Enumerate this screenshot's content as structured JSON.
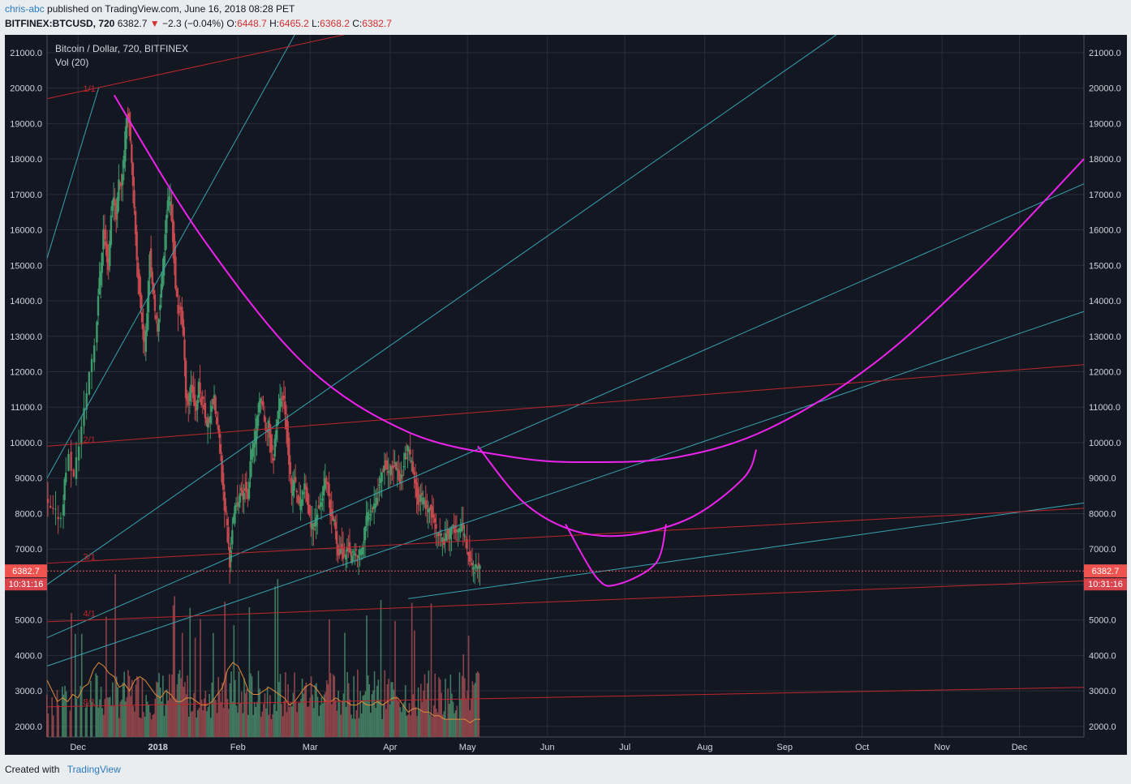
{
  "header": {
    "author": "chris-abc",
    "published": "published on TradingView.com, June 16, 2018 08:28 PET",
    "symbol": "BITFINEX:BTCUSD, 720",
    "last": "6382.7",
    "change_arrow": "▼",
    "change": "−2.3 (−0.04%)",
    "o_label": "O:",
    "o": "6448.7",
    "h_label": "H:",
    "h": "6465.2",
    "l_label": "L:",
    "l": "6368.2",
    "c_label": "C:",
    "c": "6382.7"
  },
  "footer": {
    "created_with": "Created with",
    "brand": "TradingView"
  },
  "colors": {
    "background": "#131722",
    "grid": "#2a2e39",
    "axis_text": "#d1d4dc",
    "frame_outer": "#eaedf0",
    "cyan": "#36a3b0",
    "red": "#c0262b",
    "magenta": "#ee22ee",
    "price_label": "#ef5350",
    "volume_ma": "#e08b3a",
    "vol_up": "#4a8a6a",
    "vol_down": "#a04b50"
  },
  "chart_data": {
    "type": "candlestick",
    "title": "Bitcoin / Dollar, 720, BITFINEX",
    "indicator": "Vol (20)",
    "y_ticks": [
      "21000.0",
      "20000.0",
      "19000.0",
      "18000.0",
      "17000.0",
      "16000.0",
      "15000.0",
      "14000.0",
      "13000.0",
      "12000.0",
      "11000.0",
      "10000.0",
      "9000.0",
      "8000.0",
      "7000.0",
      "6000.0",
      "5000.0",
      "4000.0",
      "3000.0",
      "2000.0"
    ],
    "y_range": [
      1700,
      21500
    ],
    "x_ticks": [
      "Dec",
      "2018",
      "Feb",
      "Mar",
      "Apr",
      "May",
      "Jun",
      "Jul",
      "Aug",
      "Sep",
      "Oct",
      "Nov",
      "Dec"
    ],
    "x_tick_days": [
      12,
      43,
      74,
      102,
      133,
      163,
      194,
      224,
      255,
      286,
      316,
      347,
      377
    ],
    "x_range": [
      0,
      402
    ],
    "last_price": "6382.7",
    "countdown": "10:31:16",
    "price_path": [
      [
        0,
        8300
      ],
      [
        2,
        8100
      ],
      [
        4,
        8000
      ],
      [
        6,
        7900
      ],
      [
        7,
        8900
      ],
      [
        9,
        9600
      ],
      [
        11,
        9000
      ],
      [
        13,
        10000
      ],
      [
        15,
        10900
      ],
      [
        17,
        12000
      ],
      [
        19,
        12800
      ],
      [
        20,
        14200
      ],
      [
        21,
        14900
      ],
      [
        22,
        16000
      ],
      [
        23,
        15500
      ],
      [
        24,
        14900
      ],
      [
        25,
        16500
      ],
      [
        26,
        17000
      ],
      [
        27,
        16400
      ],
      [
        28,
        17400
      ],
      [
        29,
        17300
      ],
      [
        30,
        18000
      ],
      [
        31,
        19300
      ],
      [
        32,
        19100
      ],
      [
        33,
        17800
      ],
      [
        34,
        16500
      ],
      [
        35,
        15200
      ],
      [
        36,
        14200
      ],
      [
        37,
        13400
      ],
      [
        38,
        12700
      ],
      [
        39,
        13800
      ],
      [
        40,
        15400
      ],
      [
        41,
        14500
      ],
      [
        42,
        13600
      ],
      [
        43,
        13200
      ],
      [
        44,
        14000
      ],
      [
        45,
        14800
      ],
      [
        46,
        16000
      ],
      [
        47,
        16900
      ],
      [
        48,
        16700
      ],
      [
        49,
        15800
      ],
      [
        50,
        14400
      ],
      [
        51,
        13600
      ],
      [
        52,
        13800
      ],
      [
        53,
        13000
      ],
      [
        54,
        11400
      ],
      [
        55,
        11100
      ],
      [
        56,
        11700
      ],
      [
        57,
        11300
      ],
      [
        58,
        10900
      ],
      [
        59,
        11600
      ],
      [
        60,
        11200
      ],
      [
        61,
        11100
      ],
      [
        62,
        10500
      ],
      [
        63,
        10600
      ],
      [
        64,
        11100
      ],
      [
        65,
        11200
      ],
      [
        66,
        10500
      ],
      [
        67,
        10100
      ],
      [
        68,
        9000
      ],
      [
        69,
        8200
      ],
      [
        70,
        7700
      ],
      [
        71,
        6500
      ],
      [
        72,
        7600
      ],
      [
        73,
        8100
      ],
      [
        74,
        8300
      ],
      [
        75,
        8600
      ],
      [
        76,
        8500
      ],
      [
        77,
        8800
      ],
      [
        78,
        8300
      ],
      [
        79,
        9500
      ],
      [
        80,
        9900
      ],
      [
        81,
        10200
      ],
      [
        82,
        10900
      ],
      [
        83,
        11300
      ],
      [
        84,
        10900
      ],
      [
        85,
        10200
      ],
      [
        86,
        10600
      ],
      [
        87,
        9800
      ],
      [
        88,
        9600
      ],
      [
        89,
        10500
      ],
      [
        90,
        11000
      ],
      [
        91,
        11300
      ],
      [
        92,
        11100
      ],
      [
        93,
        10500
      ],
      [
        94,
        9500
      ],
      [
        95,
        8500
      ],
      [
        96,
        9000
      ],
      [
        97,
        8600
      ],
      [
        98,
        8200
      ],
      [
        99,
        8500
      ],
      [
        100,
        8800
      ],
      [
        101,
        8400
      ],
      [
        102,
        7800
      ],
      [
        103,
        7600
      ],
      [
        104,
        7700
      ],
      [
        105,
        8100
      ],
      [
        106,
        8200
      ],
      [
        107,
        8500
      ],
      [
        108,
        8900
      ],
      [
        109,
        8700
      ],
      [
        110,
        8000
      ],
      [
        111,
        7800
      ],
      [
        112,
        7600
      ],
      [
        113,
        6900
      ],
      [
        114,
        7000
      ],
      [
        115,
        6800
      ],
      [
        116,
        6900
      ],
      [
        117,
        7100
      ],
      [
        118,
        6700
      ],
      [
        119,
        6800
      ],
      [
        120,
        6900
      ],
      [
        121,
        6800
      ],
      [
        122,
        7000
      ],
      [
        123,
        7200
      ],
      [
        124,
        7900
      ],
      [
        125,
        8000
      ],
      [
        126,
        8200
      ],
      [
        127,
        8300
      ],
      [
        128,
        8500
      ],
      [
        129,
        8800
      ],
      [
        130,
        9200
      ],
      [
        131,
        9400
      ],
      [
        132,
        9300
      ],
      [
        133,
        9100
      ],
      [
        134,
        9300
      ],
      [
        135,
        9400
      ],
      [
        136,
        9200
      ],
      [
        137,
        8900
      ],
      [
        138,
        9200
      ],
      [
        139,
        9600
      ],
      [
        140,
        9800
      ],
      [
        141,
        9600
      ],
      [
        142,
        9200
      ],
      [
        143,
        8800
      ],
      [
        144,
        8400
      ],
      [
        145,
        8500
      ],
      [
        146,
        8300
      ],
      [
        147,
        8200
      ],
      [
        148,
        8000
      ],
      [
        149,
        8200
      ],
      [
        150,
        7800
      ],
      [
        151,
        7500
      ],
      [
        152,
        7400
      ],
      [
        153,
        7300
      ],
      [
        154,
        7200
      ],
      [
        155,
        7500
      ],
      [
        156,
        7400
      ],
      [
        157,
        7500
      ],
      [
        158,
        7600
      ],
      [
        159,
        7600
      ],
      [
        160,
        7500
      ],
      [
        161,
        7600
      ],
      [
        162,
        7400
      ],
      [
        163,
        7000
      ],
      [
        164,
        6700
      ],
      [
        165,
        6500
      ],
      [
        166,
        6400
      ],
      [
        167,
        6500
      ],
      [
        168,
        6400
      ]
    ],
    "volume_ma_path": [
      [
        0,
        3300
      ],
      [
        2,
        3000
      ],
      [
        4,
        2700
      ],
      [
        6,
        2800
      ],
      [
        8,
        2700
      ],
      [
        10,
        2900
      ],
      [
        12,
        2800
      ],
      [
        14,
        3100
      ],
      [
        16,
        3200
      ],
      [
        18,
        3600
      ],
      [
        20,
        3800
      ],
      [
        22,
        3700
      ],
      [
        24,
        3500
      ],
      [
        26,
        3400
      ],
      [
        28,
        3100
      ],
      [
        30,
        3200
      ],
      [
        32,
        3000
      ],
      [
        34,
        3300
      ],
      [
        36,
        3400
      ],
      [
        38,
        3300
      ],
      [
        40,
        3100
      ],
      [
        42,
        2900
      ],
      [
        44,
        2800
      ],
      [
        46,
        3000
      ],
      [
        48,
        2900
      ],
      [
        50,
        2700
      ],
      [
        52,
        2700
      ],
      [
        54,
        2800
      ],
      [
        56,
        2800
      ],
      [
        58,
        2700
      ],
      [
        60,
        2600
      ],
      [
        62,
        2600
      ],
      [
        64,
        2700
      ],
      [
        66,
        2900
      ],
      [
        68,
        3100
      ],
      [
        70,
        3600
      ],
      [
        72,
        3800
      ],
      [
        74,
        3700
      ],
      [
        76,
        3400
      ],
      [
        78,
        3000
      ],
      [
        80,
        2900
      ],
      [
        82,
        2900
      ],
      [
        84,
        3000
      ],
      [
        86,
        3100
      ],
      [
        88,
        3000
      ],
      [
        90,
        2900
      ],
      [
        92,
        2800
      ],
      [
        94,
        2600
      ],
      [
        96,
        2700
      ],
      [
        98,
        2900
      ],
      [
        100,
        3100
      ],
      [
        102,
        3200
      ],
      [
        104,
        3100
      ],
      [
        106,
        2900
      ],
      [
        108,
        2700
      ],
      [
        110,
        2700
      ],
      [
        112,
        2800
      ],
      [
        114,
        2700
      ],
      [
        116,
        2700
      ],
      [
        118,
        2600
      ],
      [
        120,
        2600
      ],
      [
        122,
        2700
      ],
      [
        124,
        2600
      ],
      [
        126,
        2600
      ],
      [
        128,
        2700
      ],
      [
        130,
        2600
      ],
      [
        132,
        2700
      ],
      [
        134,
        2800
      ],
      [
        136,
        2800
      ],
      [
        138,
        2600
      ],
      [
        140,
        2400
      ],
      [
        142,
        2500
      ],
      [
        144,
        2500
      ],
      [
        146,
        2400
      ],
      [
        148,
        2400
      ],
      [
        150,
        2300
      ],
      [
        152,
        2300
      ],
      [
        154,
        2200
      ],
      [
        156,
        2200
      ],
      [
        158,
        2200
      ],
      [
        160,
        2200
      ],
      [
        162,
        2200
      ],
      [
        164,
        2100
      ],
      [
        166,
        2200
      ],
      [
        168,
        2200
      ]
    ],
    "lines_cyan": [
      [
        [
          0,
          15200
        ],
        [
          20,
          20000
        ]
      ],
      [
        [
          0,
          9000
        ],
        [
          96,
          21500
        ]
      ],
      [
        [
          0,
          6000
        ],
        [
          306,
          21500
        ]
      ],
      [
        [
          0,
          4500
        ],
        [
          402,
          17300
        ]
      ],
      [
        [
          0,
          3700
        ],
        [
          402,
          13700
        ]
      ],
      [
        [
          140,
          5600
        ],
        [
          402,
          8300
        ]
      ]
    ],
    "lines_red": [
      [
        [
          0,
          19700
        ],
        [
          115,
          21500
        ]
      ],
      [
        [
          0,
          9900
        ],
        [
          402,
          12200
        ]
      ],
      [
        [
          0,
          6600
        ],
        [
          402,
          8150
        ]
      ],
      [
        [
          0,
          4950
        ],
        [
          402,
          6100
        ]
      ],
      [
        [
          0,
          2550
        ],
        [
          402,
          3100
        ]
      ]
    ],
    "arc_big": [
      [
        26,
        19800
      ],
      [
        60,
        15800
      ],
      [
        100,
        12200
      ],
      [
        140,
        10300
      ],
      [
        180,
        9600
      ],
      [
        210,
        9450
      ],
      [
        245,
        9600
      ],
      [
        280,
        10400
      ],
      [
        320,
        12200
      ],
      [
        360,
        14800
      ],
      [
        402,
        18000
      ]
    ],
    "arc_mid": [
      [
        167,
        9900
      ],
      [
        185,
        8300
      ],
      [
        205,
        7500
      ],
      [
        226,
        7400
      ],
      [
        250,
        7900
      ],
      [
        270,
        9000
      ],
      [
        275,
        9800
      ]
    ],
    "arc_small": [
      [
        201,
        7700
      ],
      [
        213,
        6200
      ],
      [
        221,
        6000
      ],
      [
        236,
        6600
      ],
      [
        240,
        7700
      ]
    ],
    "gann_labels": [
      {
        "text": "1/1",
        "day": 14,
        "price": 19900
      },
      {
        "text": "2/1",
        "day": 14,
        "price": 10000
      },
      {
        "text": "3/1",
        "day": 14,
        "price": 6700
      },
      {
        "text": "4/1",
        "day": 14,
        "price": 5100
      },
      {
        "text": "8/1",
        "day": 14,
        "price": 2600
      }
    ]
  }
}
